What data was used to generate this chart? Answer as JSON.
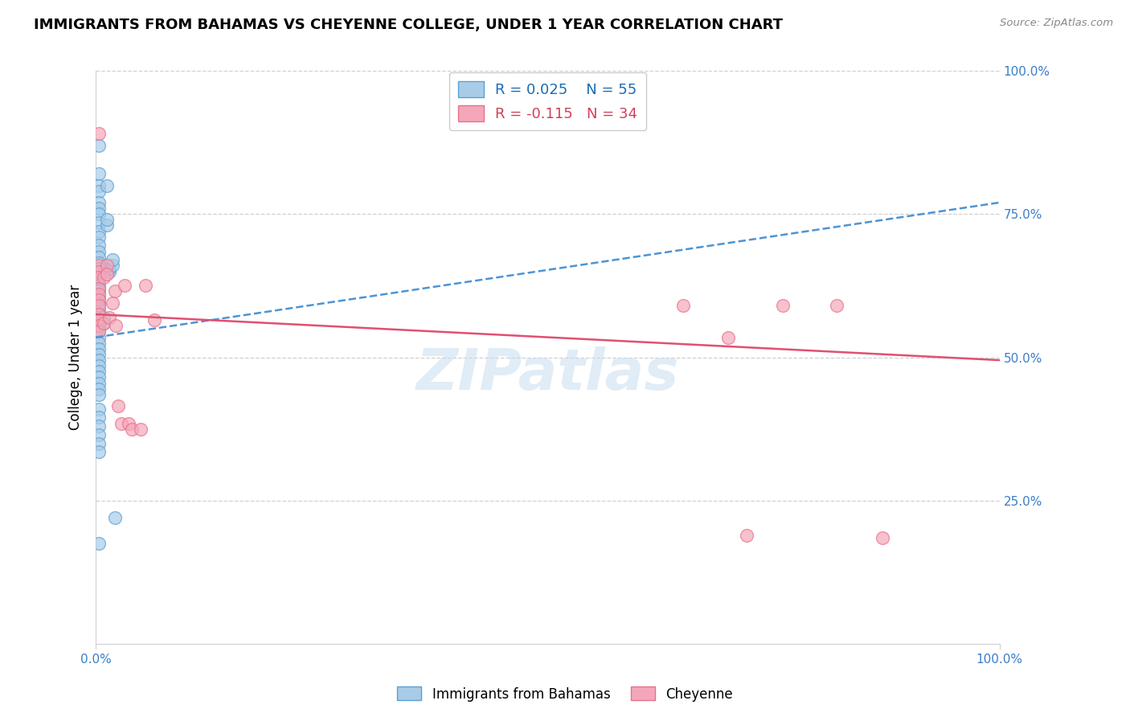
{
  "title": "IMMIGRANTS FROM BAHAMAS VS CHEYENNE COLLEGE, UNDER 1 YEAR CORRELATION CHART",
  "source": "Source: ZipAtlas.com",
  "ylabel": "College, Under 1 year",
  "xlim": [
    0.0,
    1.0
  ],
  "ylim": [
    0.0,
    1.0
  ],
  "blue_label": "Immigrants from Bahamas",
  "pink_label": "Cheyenne",
  "blue_R": "R = 0.025",
  "blue_N": "N = 55",
  "pink_R": "R = -0.115",
  "pink_N": "N = 34",
  "blue_color": "#a8cce8",
  "pink_color": "#f4a7b9",
  "blue_edge_color": "#5b9fd4",
  "pink_edge_color": "#e8708a",
  "blue_line_color": "#4d94d4",
  "pink_line_color": "#e05070",
  "blue_legend_color": "#1a6bb5",
  "pink_legend_color": "#d0405a",
  "blue_points_x": [
    0.003,
    0.003,
    0.003,
    0.003,
    0.003,
    0.003,
    0.003,
    0.003,
    0.003,
    0.003,
    0.003,
    0.003,
    0.003,
    0.003,
    0.003,
    0.003,
    0.003,
    0.003,
    0.003,
    0.003,
    0.003,
    0.003,
    0.003,
    0.003,
    0.003,
    0.003,
    0.003,
    0.003,
    0.003,
    0.003,
    0.003,
    0.003,
    0.003,
    0.003,
    0.003,
    0.003,
    0.003,
    0.003,
    0.003,
    0.003,
    0.003,
    0.003,
    0.003,
    0.003,
    0.003,
    0.009,
    0.009,
    0.012,
    0.012,
    0.012,
    0.015,
    0.015,
    0.018,
    0.018,
    0.021
  ],
  "blue_points_y": [
    0.87,
    0.82,
    0.8,
    0.79,
    0.77,
    0.76,
    0.75,
    0.735,
    0.72,
    0.71,
    0.695,
    0.685,
    0.675,
    0.665,
    0.655,
    0.645,
    0.635,
    0.625,
    0.615,
    0.605,
    0.595,
    0.585,
    0.575,
    0.565,
    0.555,
    0.545,
    0.535,
    0.525,
    0.515,
    0.505,
    0.495,
    0.485,
    0.475,
    0.465,
    0.455,
    0.445,
    0.435,
    0.41,
    0.395,
    0.38,
    0.365,
    0.35,
    0.335,
    0.175,
    0.565,
    0.56,
    0.57,
    0.73,
    0.74,
    0.8,
    0.65,
    0.655,
    0.66,
    0.67,
    0.22
  ],
  "pink_points_x": [
    0.003,
    0.003,
    0.003,
    0.003,
    0.003,
    0.003,
    0.003,
    0.003,
    0.003,
    0.003,
    0.003,
    0.003,
    0.009,
    0.009,
    0.012,
    0.012,
    0.015,
    0.018,
    0.021,
    0.022,
    0.025,
    0.028,
    0.032,
    0.036,
    0.04,
    0.05,
    0.055,
    0.065,
    0.65,
    0.7,
    0.72,
    0.76,
    0.82,
    0.87
  ],
  "pink_points_y": [
    0.89,
    0.66,
    0.65,
    0.64,
    0.62,
    0.61,
    0.6,
    0.59,
    0.575,
    0.565,
    0.555,
    0.545,
    0.64,
    0.56,
    0.66,
    0.645,
    0.57,
    0.595,
    0.615,
    0.555,
    0.415,
    0.385,
    0.625,
    0.385,
    0.375,
    0.375,
    0.625,
    0.565,
    0.59,
    0.535,
    0.19,
    0.59,
    0.59,
    0.185
  ],
  "blue_trend_y_start": 0.535,
  "blue_trend_y_end": 0.77,
  "pink_trend_y_start": 0.575,
  "pink_trend_y_end": 0.495,
  "ytick_vals": [
    0.25,
    0.5,
    0.75,
    1.0
  ],
  "ytick_labels": [
    "25.0%",
    "50.0%",
    "75.0%",
    "100.0%"
  ],
  "xtick_vals": [
    0.0,
    1.0
  ],
  "xtick_labels": [
    "0.0%",
    "100.0%"
  ],
  "grid_color": "#d0d0d0",
  "watermark_color": "#c8ddf0",
  "title_fontsize": 13,
  "axis_fontsize": 11,
  "legend_fontsize": 13
}
